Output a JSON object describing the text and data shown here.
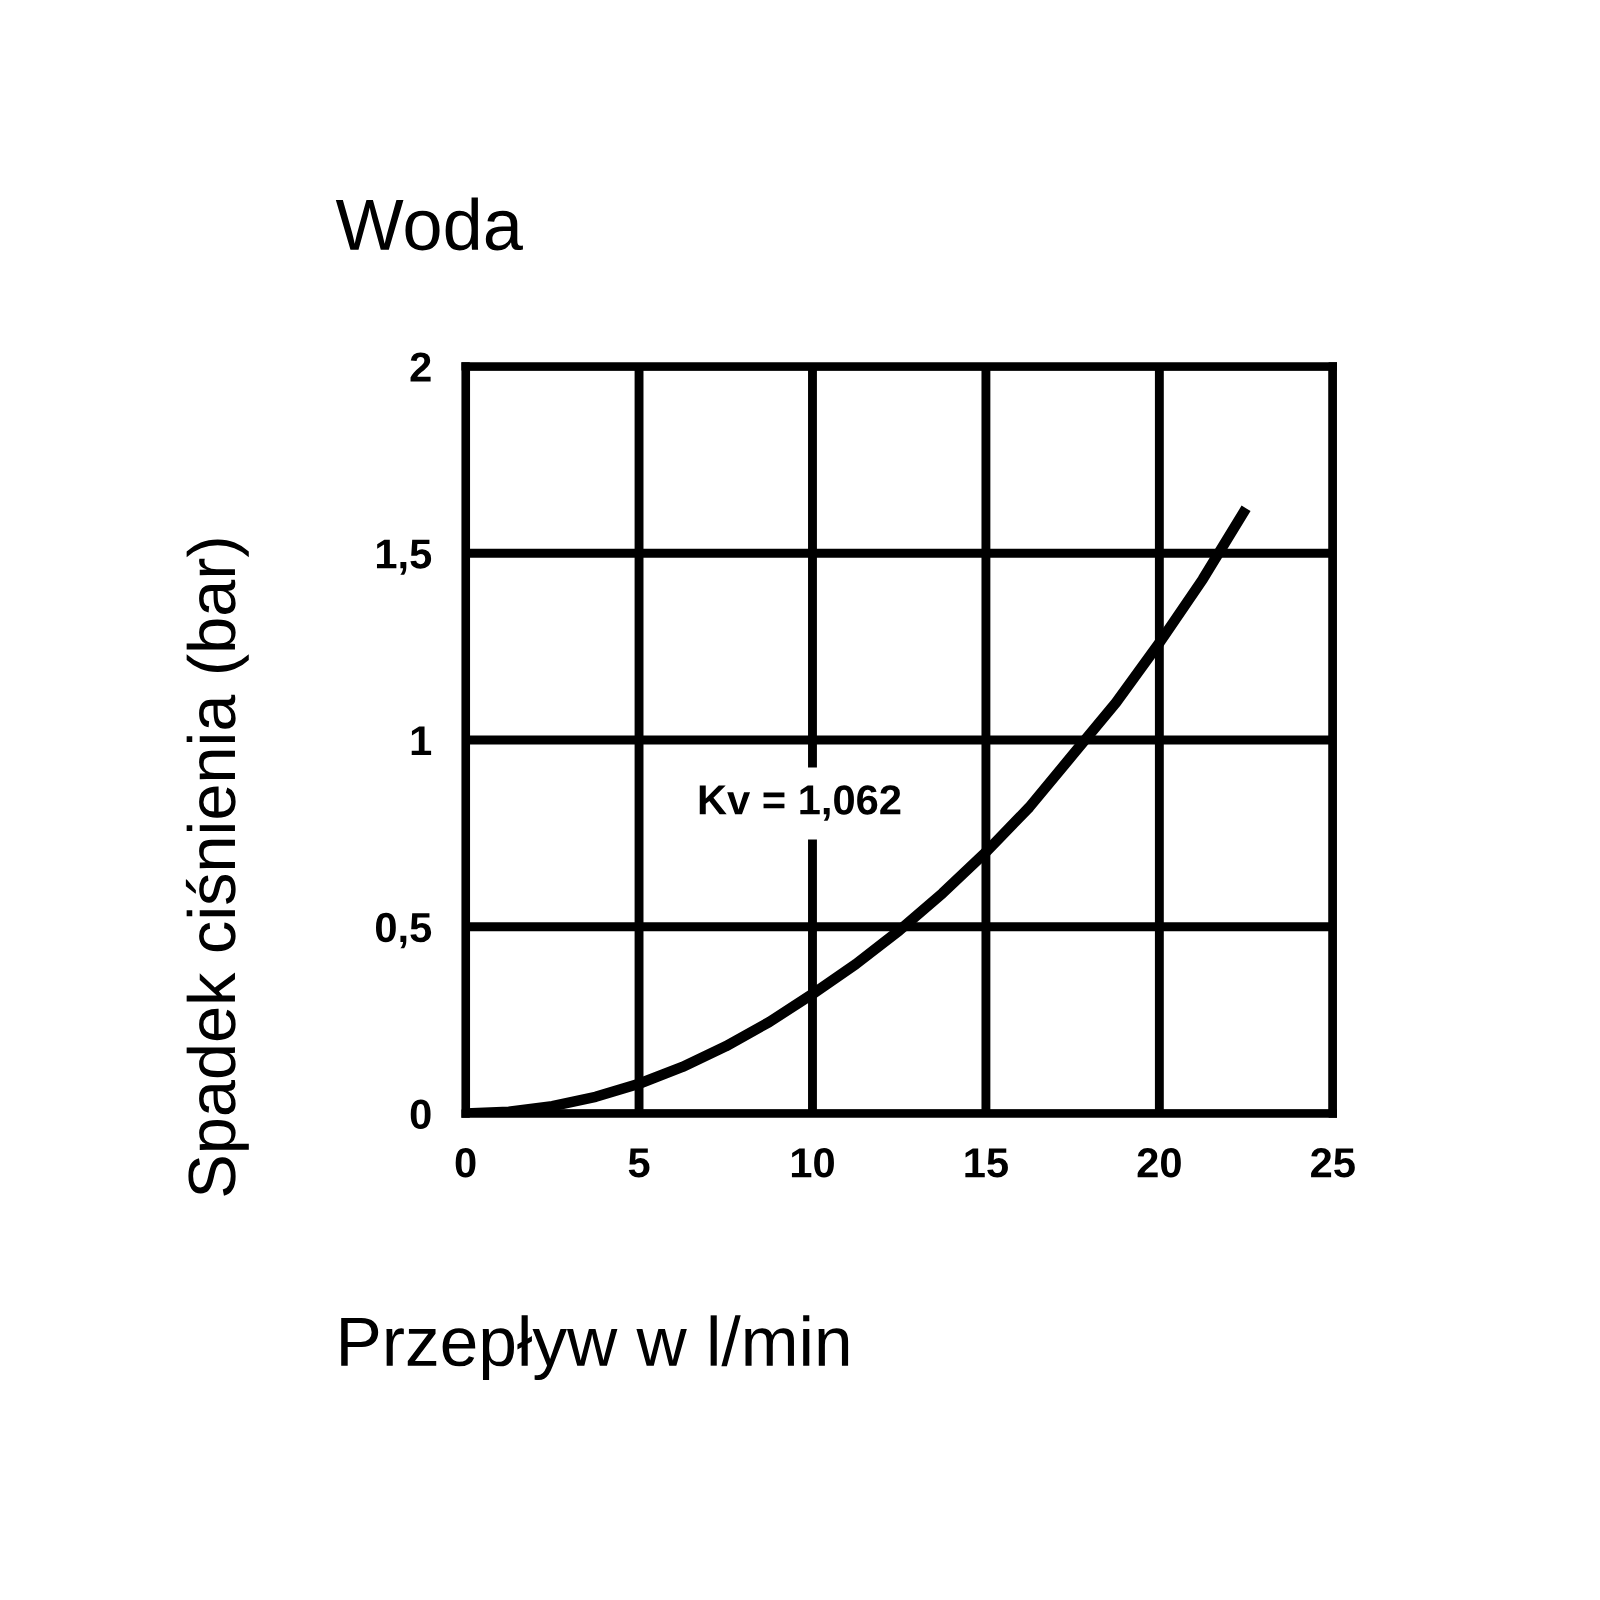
{
  "chart_data": {
    "type": "line",
    "title": "Woda",
    "xlabel": "Przepływ w l/min",
    "ylabel": "Spadek ciśnienia (bar)",
    "annotations": [
      "Kv = 1,062"
    ],
    "x": [
      0,
      1.25,
      2.5,
      3.75,
      5,
      6.25,
      7.5,
      8.75,
      10,
      11.25,
      12.5,
      13.75,
      15,
      16.25,
      17.5,
      18.75,
      20,
      21.25,
      22.5
    ],
    "series": [
      {
        "color": "#000000",
        "values": [
          0,
          0.005,
          0.02,
          0.045,
          0.08,
          0.125,
          0.18,
          0.245,
          0.32,
          0.4,
          0.49,
          0.59,
          0.7,
          0.82,
          0.96,
          1.1,
          1.26,
          1.43,
          1.62
        ]
      }
    ],
    "xlim": [
      0,
      25
    ],
    "ylim": [
      0,
      2
    ],
    "xticks": [
      0,
      5,
      10,
      15,
      20,
      25
    ],
    "yticks": [
      0,
      {
        "value": 0.5,
        "label": "0,5"
      },
      1,
      {
        "value": 1.5,
        "label": "1,5"
      },
      2
    ],
    "grid": true,
    "line_style": "solid"
  }
}
